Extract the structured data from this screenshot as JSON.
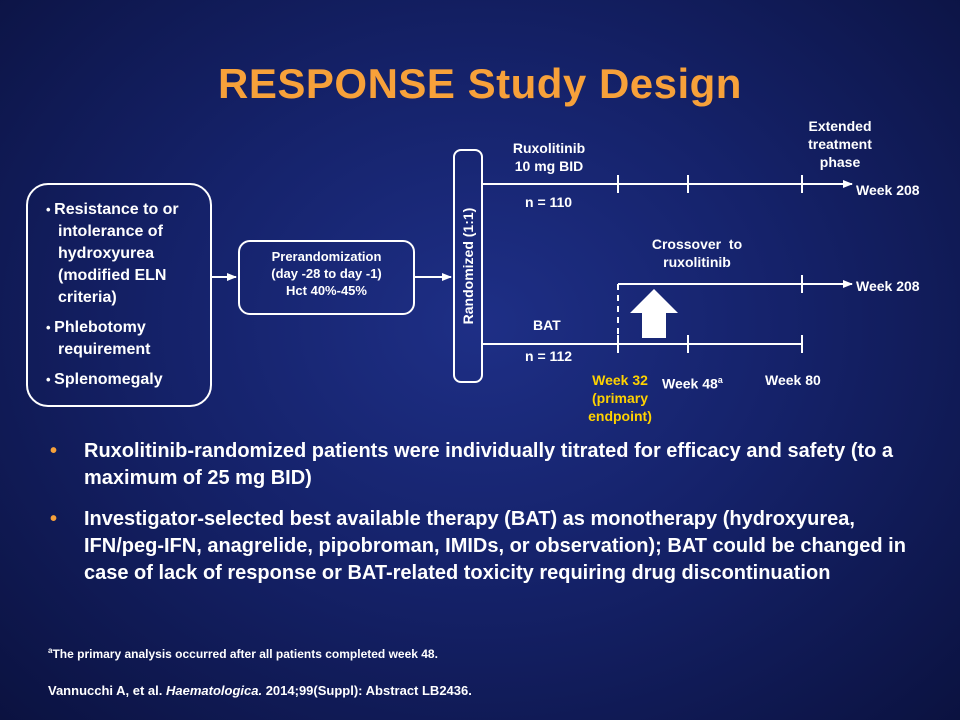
{
  "slide": {
    "title": "RESPONSE Study Design"
  },
  "eligibility": {
    "items": [
      "Resistance to or intolerance of hydroxyurea (modified ELN criteria)",
      "Phlebotomy requirement",
      "Splenomegaly"
    ]
  },
  "prerandomization": {
    "line1": "Prerandomization",
    "line2": "(day -28 to day -1)",
    "line3": "Hct 40%-45%"
  },
  "randomization": {
    "label": "Randomized (1:1)"
  },
  "arms": {
    "ruxolitinib": {
      "name_line1": "Ruxolitinib",
      "name_line2": "10 mg BID",
      "n": "n = 110",
      "end_label": "Week 208"
    },
    "crossover": {
      "label_line1": "Crossover  to",
      "label_line2": "ruxolitinib",
      "end_label": "Week 208"
    },
    "bat": {
      "name": "BAT",
      "n": "n = 112"
    }
  },
  "extended_phase": {
    "line1": "Extended",
    "line2": "treatment",
    "line3": "phase"
  },
  "timepoints": {
    "week32": "Week 32",
    "primary_line1": "(primary",
    "primary_line2": "endpoint)",
    "week48": "Week 48",
    "week48_sup": "a",
    "week80": "Week 80"
  },
  "colors": {
    "title": "#f7a13a",
    "highlight": "#ffd200",
    "background": "#15226a"
  },
  "bullets": [
    "Ruxolitinib-randomized patients were individually titrated for efficacy and safety (to a maximum of 25 mg BID)",
    "Investigator-selected best available therapy (BAT) as monotherapy (hydroxyurea, IFN/peg-IFN, anagrelide, pipobroman, IMIDs, or observation); BAT could be changed in case of lack of response or BAT-related toxicity requiring drug discontinuation"
  ],
  "bullet_marker": "•",
  "footnote": {
    "marker": "a",
    "text": "The primary analysis occurred after all patients completed week 48."
  },
  "citation": {
    "authors": "Vannucchi A, et al. ",
    "journal": "Haematologica.",
    "details": " 2014;99(Suppl): Abstract LB2436."
  }
}
